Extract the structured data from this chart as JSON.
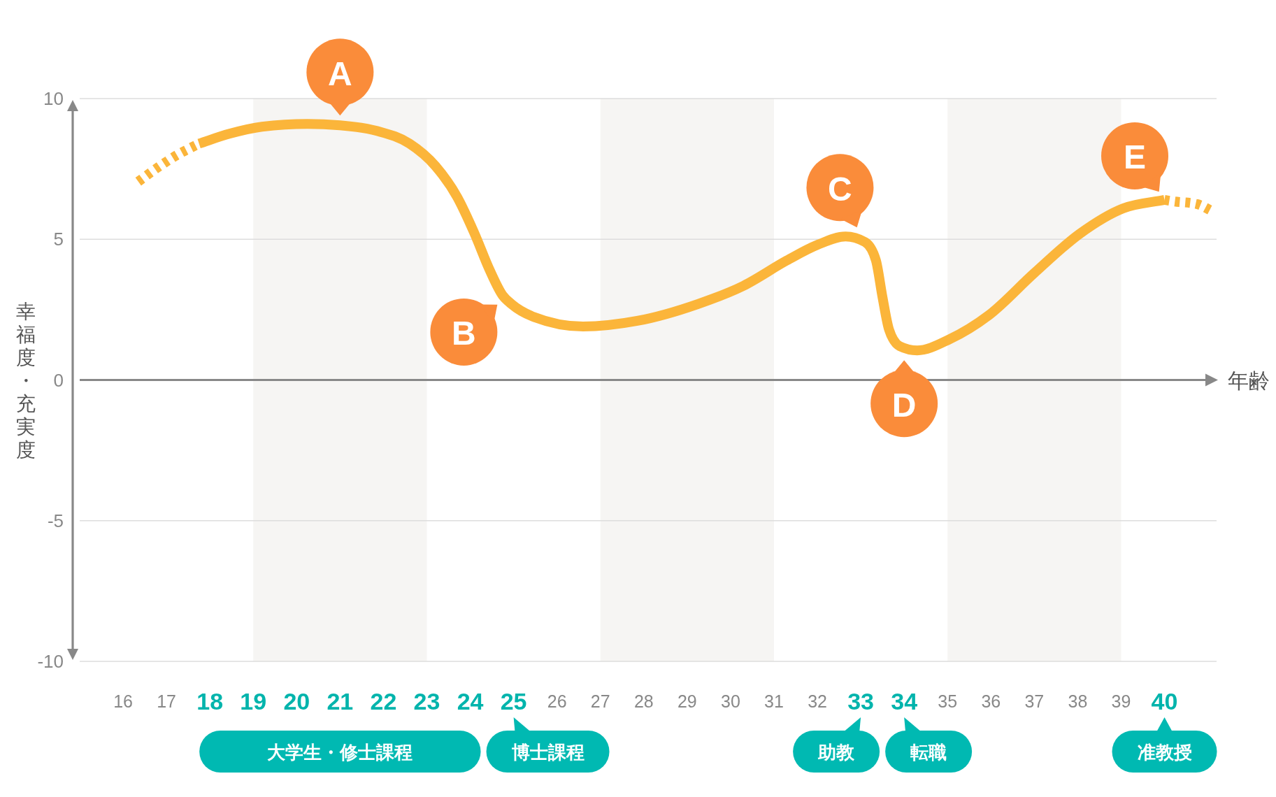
{
  "chart_data": {
    "type": "line",
    "xlabel": "年齢",
    "ylabel": "幸福度・充実度",
    "series": [
      {
        "color": "#fbb53a",
        "line_style": "dotted",
        "x": [
          16.35,
          16.75,
          17.25,
          17.75
        ],
        "values": [
          7.05,
          7.5,
          8.0,
          8.4
        ]
      },
      {
        "color": "#fbb53a",
        "line_style": "solid",
        "x": [
          17.75,
          18.45,
          19.2,
          20.25,
          21.0,
          21.85,
          22.6,
          23.2,
          23.7,
          24.1,
          24.45,
          24.75,
          24.95,
          25.45,
          26.6,
          27.85,
          29.25,
          30.3,
          31.3,
          32.0,
          32.65,
          33.1,
          33.35,
          33.5,
          33.65,
          33.9,
          34.3,
          35.05,
          35.95,
          37.0,
          38.05,
          39.05,
          40.0
        ],
        "values": [
          8.4,
          8.75,
          9.0,
          9.1,
          9.05,
          8.85,
          8.4,
          7.6,
          6.5,
          5.2,
          3.9,
          3.0,
          2.7,
          2.25,
          1.9,
          2.1,
          2.7,
          3.35,
          4.25,
          4.8,
          5.1,
          4.9,
          4.25,
          2.95,
          1.8,
          1.2,
          1.05,
          1.45,
          2.3,
          3.8,
          5.2,
          6.1,
          6.4
        ]
      },
      {
        "color": "#fbb53a",
        "line_style": "dotted",
        "x": [
          40.0,
          40.2,
          40.75,
          41.1
        ],
        "values": [
          6.4,
          6.35,
          6.25,
          6.0
        ]
      }
    ],
    "xlim": [
      15,
      41.2
    ],
    "xticks": [
      16,
      17,
      18,
      19,
      20,
      21,
      22,
      23,
      24,
      25,
      26,
      27,
      28,
      29,
      30,
      31,
      32,
      33,
      34,
      35,
      36,
      37,
      38,
      39,
      40
    ],
    "ylim": [
      -10,
      10
    ],
    "yticks": [
      -10,
      -5,
      0,
      5,
      10
    ],
    "grid": "y",
    "bands": [
      {
        "axis": "x",
        "from": 19,
        "to": 23,
        "color": "#f6f5f3"
      },
      {
        "axis": "x",
        "from": 27,
        "to": 31,
        "color": "#f6f5f3"
      },
      {
        "axis": "x",
        "from": 35,
        "to": 39,
        "color": "#f6f5f3"
      }
    ],
    "annotations": [
      {
        "text": "A",
        "x": 21,
        "y": 9.05
      },
      {
        "text": "B",
        "x": 24.8,
        "y": 2.9
      },
      {
        "text": "C",
        "x": 33,
        "y": 5.1
      },
      {
        "text": "D",
        "x": 34,
        "y": 1.05
      },
      {
        "text": "E",
        "x": 40,
        "y": 6.4
      },
      "大学生・修士課程",
      "博士課程",
      "助教",
      "転職",
      "准教授"
    ]
  }
}
